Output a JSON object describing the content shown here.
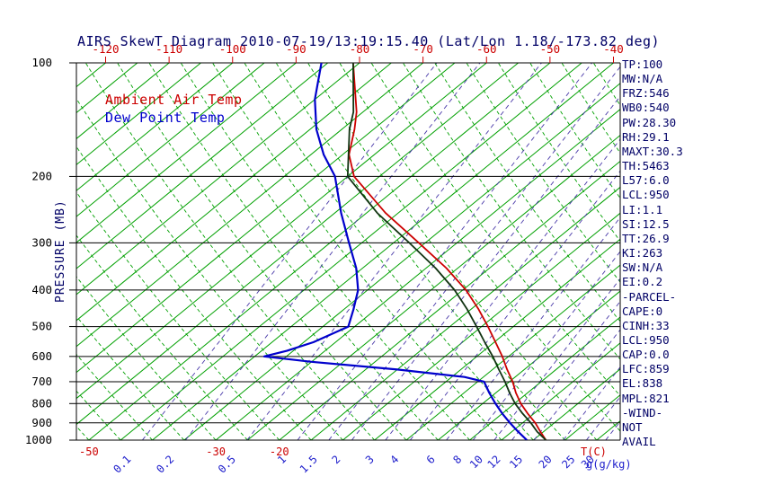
{
  "title": "AIRS SkewT Diagram 2010-07-19/13:19:15.40 (Lat/Lon 1.18/-173.82 deg)",
  "y_axis_label": "PRESSURE (MB)",
  "units": {
    "temp": "T(C)",
    "mixing_ratio": "g(g/kg)"
  },
  "stats": [
    "TP:100",
    "MW:N/A",
    "FRZ:546",
    "WB0:540",
    "PW:28.30",
    "RH:29.1",
    "MAXT:30.3",
    "TH:5463",
    "L57:6.0",
    "LCL:950",
    "LI:1.1",
    "SI:12.5",
    "TT:26.9",
    "KI:263",
    "SW:N/A",
    "EI:0.2",
    "-PARCEL-",
    "CAPE:0",
    "CINH:33",
    "LCL:950",
    "CAP:0.0",
    "LFC:859",
    "EL:838",
    "MPL:821",
    "-WIND-",
    "NOT",
    "AVAIL"
  ],
  "colors": {
    "temp_red": "#cc0000",
    "dew_blue": "#0000cc",
    "label_blue": "#2020cc",
    "grid_green": "#00a000",
    "mixing_purple": "#4838a8",
    "parcel_dark": "#113311",
    "text_navy": "#000066",
    "axis_black": "#000000"
  },
  "chart_data": {
    "type": "line",
    "variant": "skew-t-log-p",
    "title": "AIRS SkewT Diagram 2010-07-19/13:19:15.40 (Lat/Lon 1.18/-173.82 deg)",
    "y_axis": {
      "label": "PRESSURE (MB)",
      "scale": "log",
      "range_mb": [
        100,
        1000
      ]
    },
    "pressure_ticks_mb": [
      100,
      200,
      300,
      400,
      500,
      600,
      700,
      800,
      900,
      1000
    ],
    "top_temp_ticks_c": [
      -120,
      -110,
      -100,
      -90,
      -80,
      -70,
      -60,
      -50,
      -40
    ],
    "bottom_temp_ticks_c": [
      -50,
      -30,
      -20
    ],
    "mixing_ratio_ticks_g_kg": [
      0.1,
      0.2,
      0.5,
      1,
      1.5,
      2,
      3,
      4,
      6,
      8,
      10,
      12,
      15,
      20,
      25,
      30
    ],
    "grid": {
      "isotherms_c": {
        "min": -120,
        "max": 35,
        "step": 5
      },
      "adiabats_c": {
        "min": -50,
        "max": 85,
        "step": 5
      }
    },
    "legend_position": "top-left",
    "series": [
      {
        "name": "Ambient Air Temp",
        "color_key": "temp_red",
        "points_p_mb_t_c": [
          [
            1000,
            22
          ],
          [
            950,
            19.5
          ],
          [
            900,
            17
          ],
          [
            850,
            14
          ],
          [
            800,
            11
          ],
          [
            750,
            8.2
          ],
          [
            700,
            5.5
          ],
          [
            650,
            2.3
          ],
          [
            600,
            -1
          ],
          [
            550,
            -4.8
          ],
          [
            500,
            -9
          ],
          [
            450,
            -13.8
          ],
          [
            400,
            -19.5
          ],
          [
            350,
            -26.8
          ],
          [
            300,
            -36
          ],
          [
            250,
            -47
          ],
          [
            200,
            -59
          ],
          [
            175,
            -64
          ],
          [
            150,
            -68
          ],
          [
            135,
            -71
          ],
          [
            100,
            -81
          ]
        ]
      },
      {
        "name": "Parcel",
        "color_key": "parcel_dark",
        "points_p_mb_t_c": [
          [
            1000,
            22
          ],
          [
            950,
            19
          ],
          [
            900,
            16.3
          ],
          [
            850,
            13.2
          ],
          [
            800,
            10.1
          ],
          [
            750,
            7.2
          ],
          [
            700,
            4.3
          ],
          [
            650,
            1
          ],
          [
            600,
            -2.5
          ],
          [
            550,
            -6.5
          ],
          [
            500,
            -10.8
          ],
          [
            450,
            -15.6
          ],
          [
            400,
            -21.3
          ],
          [
            350,
            -28.5
          ],
          [
            300,
            -37.5
          ],
          [
            250,
            -48.3
          ],
          [
            200,
            -60
          ],
          [
            150,
            -68.8
          ],
          [
            135,
            -71.5
          ],
          [
            100,
            -81
          ]
        ]
      },
      {
        "name": "Dew Point Temp",
        "color_key": "dew_blue",
        "points_p_mb_t_c": [
          [
            1000,
            19
          ],
          [
            950,
            16
          ],
          [
            900,
            13
          ],
          [
            850,
            10
          ],
          [
            800,
            7
          ],
          [
            750,
            4
          ],
          [
            700,
            1
          ],
          [
            680,
            -3
          ],
          [
            650,
            -15
          ],
          [
            620,
            -30
          ],
          [
            600,
            -38.5
          ],
          [
            580,
            -36
          ],
          [
            550,
            -33.5
          ],
          [
            500,
            -31
          ],
          [
            450,
            -33.5
          ],
          [
            400,
            -36.5
          ],
          [
            350,
            -41
          ],
          [
            300,
            -47
          ],
          [
            250,
            -54
          ],
          [
            200,
            -62
          ],
          [
            175,
            -68
          ],
          [
            150,
            -74
          ],
          [
            125,
            -80
          ],
          [
            100,
            -86
          ]
        ]
      }
    ]
  }
}
